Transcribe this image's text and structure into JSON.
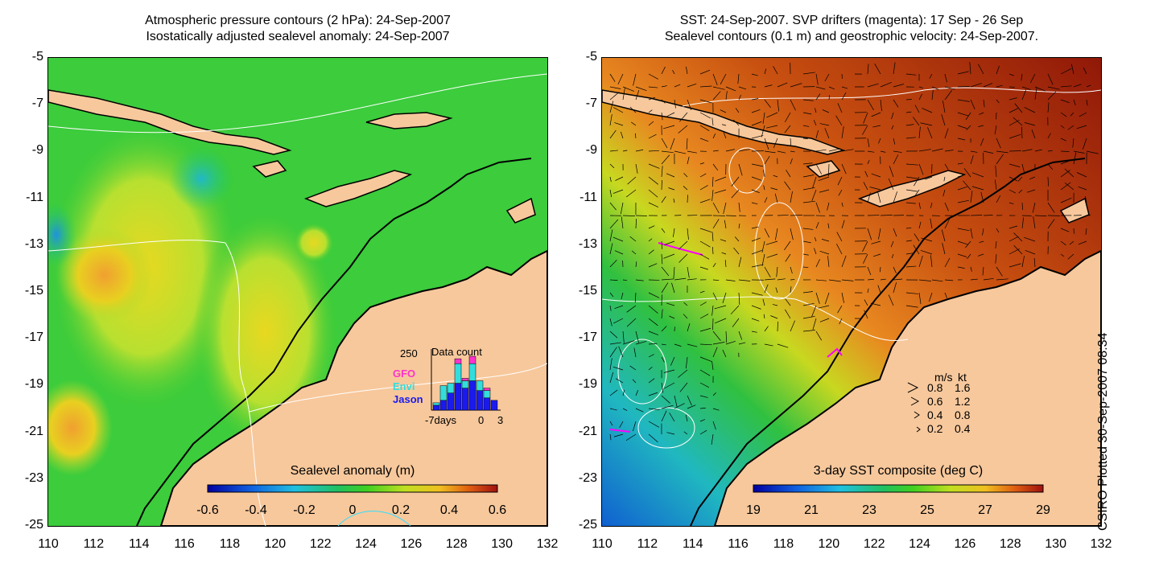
{
  "left_panel": {
    "title_line1": "Atmospheric pressure contours (2 hPa): 24-Sep-2007",
    "title_line2": "Isostatically adjusted sealevel anomaly: 24-Sep-2007",
    "colorbar_title": "Sealevel anomaly (m)",
    "colorbar_ticks": [
      "-0.6",
      "-0.4",
      "-0.2",
      "0",
      "0.2",
      "0.4",
      "0.6"
    ],
    "inset": {
      "title": "Data count",
      "ymax_label": "250",
      "x_labels": [
        "-7days",
        "0",
        "3"
      ],
      "legend": [
        {
          "name": "GFO",
          "color": "#ff33cc"
        },
        {
          "name": "Envi",
          "color": "#33dddd"
        },
        {
          "name": "Jason",
          "color": "#1a1aee"
        }
      ],
      "bars_jason": [
        20,
        40,
        70,
        110,
        90,
        120,
        80,
        50,
        40
      ],
      "bars_envi": [
        10,
        60,
        40,
        80,
        30,
        70,
        40,
        30,
        0
      ],
      "bars_gfo": [
        0,
        0,
        0,
        20,
        10,
        30,
        0,
        10,
        0
      ]
    }
  },
  "right_panel": {
    "title_line1": "SST: 24-Sep-2007. SVP drifters (magenta): 17 Sep - 26 Sep",
    "title_line2": "Sealevel contours (0.1 m) and geostrophic velocity: 24-Sep-2007.",
    "colorbar_title": "3-day SST composite (deg C)",
    "colorbar_ticks": [
      "19",
      "21",
      "23",
      "25",
      "27",
      "29"
    ],
    "velocity_legend": {
      "header": [
        "m/s",
        "kt"
      ],
      "rows": [
        [
          "0.8",
          "1.6"
        ],
        [
          "0.6",
          "1.2"
        ],
        [
          "0.4",
          "0.8"
        ],
        [
          "0.2",
          "0.4"
        ]
      ]
    }
  },
  "axes": {
    "y_ticks": [
      "-5",
      "-7",
      "-9",
      "-11",
      "-13",
      "-15",
      "-17",
      "-19",
      "-21",
      "-23",
      "-25"
    ],
    "x_ticks": [
      "110",
      "112",
      "114",
      "116",
      "118",
      "120",
      "122",
      "124",
      "126",
      "128",
      "130",
      "132"
    ]
  },
  "credit": "CSIRO Plotted 30-Sep-2007 08:34",
  "colors": {
    "land": "#f7c89c",
    "ocean_green": "#33cc33",
    "sst_warm": "#b83c0c"
  }
}
